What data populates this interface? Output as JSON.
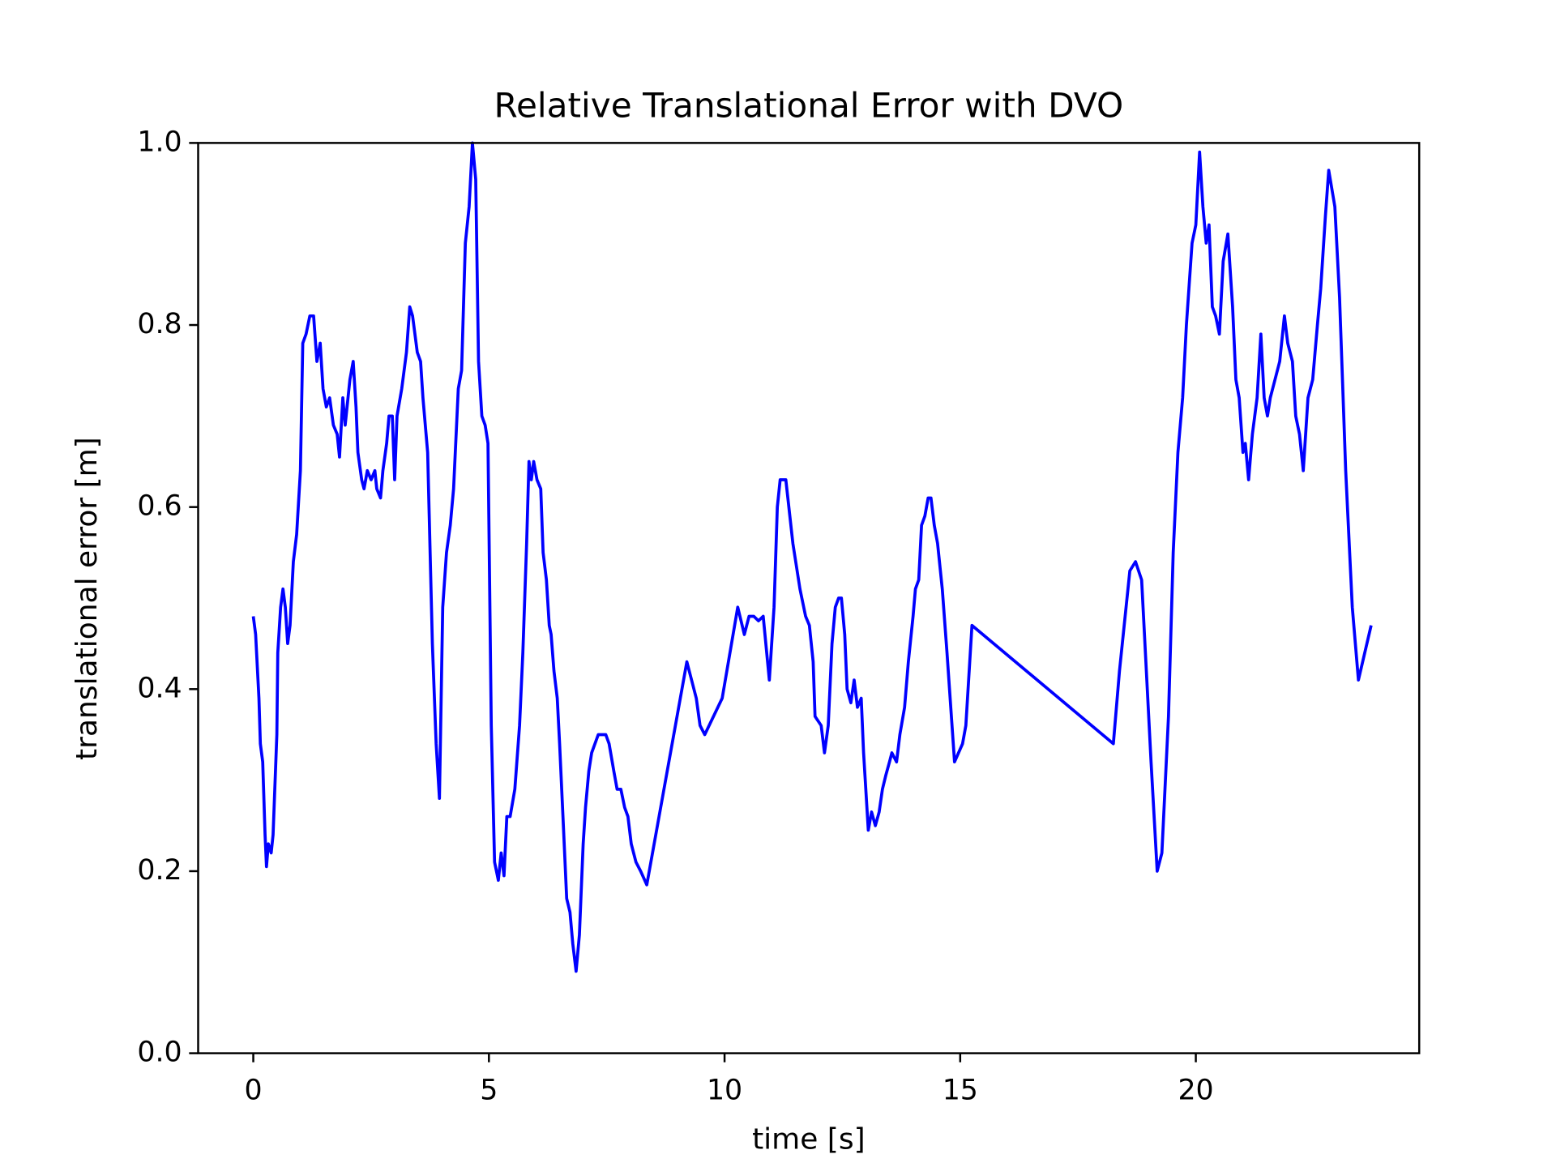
{
  "chart_data": {
    "type": "line",
    "title": "Relative Translational Error with DVO",
    "x_label": "time [s]",
    "y_label": "translational error [m]",
    "xlim": [
      -1.17,
      24.74
    ],
    "ylim": [
      0,
      1
    ],
    "xticks": [
      0,
      5,
      10,
      15,
      20
    ],
    "yticks": [
      {
        "value": 0,
        "label": "0.0"
      },
      {
        "value": 0.2,
        "label": "0.2"
      },
      {
        "value": 0.4,
        "label": "0.4"
      },
      {
        "value": 0.6,
        "label": "0.6"
      },
      {
        "value": 0.8,
        "label": "0.8"
      },
      {
        "value": 1,
        "label": "1.0"
      }
    ],
    "grid": false,
    "series": [
      {
        "color": "#0000ff",
        "x": [
          0,
          0.05,
          0.12,
          0.15,
          0.2,
          0.25,
          0.28,
          0.32,
          0.38,
          0.42,
          0.5,
          0.52,
          0.58,
          0.63,
          0.68,
          0.73,
          0.78,
          0.85,
          0.92,
          1.0,
          1.05,
          1.12,
          1.2,
          1.28,
          1.35,
          1.42,
          1.48,
          1.55,
          1.62,
          1.7,
          1.78,
          1.83,
          1.9,
          1.95,
          2.05,
          2.12,
          2.18,
          2.22,
          2.3,
          2.35,
          2.42,
          2.5,
          2.58,
          2.62,
          2.7,
          2.75,
          2.83,
          2.88,
          2.95,
          3.0,
          3.05,
          3.15,
          3.25,
          3.32,
          3.38,
          3.48,
          3.55,
          3.6,
          3.7,
          3.8,
          3.88,
          3.95,
          4.02,
          4.1,
          4.18,
          4.25,
          4.35,
          4.42,
          4.5,
          4.58,
          4.65,
          4.72,
          4.78,
          4.85,
          4.92,
          4.98,
          5.05,
          5.12,
          5.2,
          5.26,
          5.32,
          5.38,
          5.45,
          5.55,
          5.65,
          5.72,
          5.8,
          5.85,
          5.9,
          5.95,
          6.02,
          6.1,
          6.15,
          6.22,
          6.28,
          6.32,
          6.38,
          6.45,
          6.5,
          6.58,
          6.65,
          6.72,
          6.78,
          6.85,
          6.92,
          7.0,
          7.05,
          7.12,
          7.18,
          7.25,
          7.32,
          7.4,
          7.48,
          7.55,
          7.65,
          7.72,
          7.8,
          7.88,
          7.95,
          8.02,
          8.12,
          8.22,
          8.35,
          9.2,
          9.3,
          9.4,
          9.48,
          9.58,
          9.95,
          10.28,
          10.42,
          10.52,
          10.62,
          10.72,
          10.82,
          10.95,
          11.05,
          11.12,
          11.18,
          11.3,
          11.45,
          11.6,
          11.72,
          11.8,
          11.88,
          11.92,
          12.05,
          12.12,
          12.2,
          12.28,
          12.35,
          12.42,
          12.48,
          12.55,
          12.6,
          12.68,
          12.75,
          12.82,
          12.9,
          12.95,
          13.05,
          13.12,
          13.2,
          13.28,
          13.35,
          13.42,
          13.5,
          13.55,
          13.65,
          13.72,
          13.82,
          13.9,
          14.0,
          14.05,
          14.12,
          14.18,
          14.25,
          14.32,
          14.38,
          14.45,
          14.52,
          14.62,
          14.72,
          14.88,
          15.05,
          15.12,
          15.25,
          18.25,
          18.38,
          18.6,
          18.72,
          18.85,
          19.05,
          19.18,
          19.28,
          19.42,
          19.52,
          19.62,
          19.72,
          19.8,
          19.92,
          20.0,
          20.08,
          20.15,
          20.22,
          20.28,
          20.35,
          20.42,
          20.5,
          20.58,
          20.68,
          20.78,
          20.85,
          20.92,
          21.0,
          21.05,
          21.12,
          21.2,
          21.3,
          21.38,
          21.45,
          21.52,
          21.58,
          21.68,
          21.78,
          21.88,
          21.95,
          22.05,
          22.12,
          22.2,
          22.28,
          22.38,
          22.48,
          22.58,
          22.65,
          22.75,
          22.82,
          22.95,
          23.05,
          23.18,
          23.32,
          23.45,
          23.72
        ],
        "values": [
          0.48,
          0.46,
          0.39,
          0.34,
          0.32,
          0.24,
          0.205,
          0.23,
          0.22,
          0.24,
          0.35,
          0.44,
          0.49,
          0.51,
          0.49,
          0.45,
          0.47,
          0.54,
          0.57,
          0.64,
          0.78,
          0.79,
          0.81,
          0.81,
          0.76,
          0.78,
          0.73,
          0.71,
          0.72,
          0.69,
          0.68,
          0.655,
          0.72,
          0.69,
          0.74,
          0.76,
          0.71,
          0.66,
          0.63,
          0.62,
          0.64,
          0.63,
          0.64,
          0.62,
          0.61,
          0.64,
          0.67,
          0.7,
          0.7,
          0.63,
          0.7,
          0.73,
          0.77,
          0.82,
          0.81,
          0.77,
          0.76,
          0.72,
          0.66,
          0.45,
          0.34,
          0.28,
          0.49,
          0.55,
          0.58,
          0.62,
          0.73,
          0.75,
          0.89,
          0.93,
          1.0,
          0.96,
          0.76,
          0.7,
          0.69,
          0.67,
          0.36,
          0.21,
          0.19,
          0.22,
          0.195,
          0.26,
          0.26,
          0.29,
          0.36,
          0.44,
          0.56,
          0.65,
          0.63,
          0.65,
          0.63,
          0.62,
          0.55,
          0.52,
          0.47,
          0.46,
          0.42,
          0.39,
          0.34,
          0.25,
          0.17,
          0.155,
          0.12,
          0.09,
          0.13,
          0.23,
          0.27,
          0.31,
          0.33,
          0.34,
          0.35,
          0.35,
          0.35,
          0.34,
          0.31,
          0.29,
          0.29,
          0.27,
          0.26,
          0.23,
          0.21,
          0.2,
          0.185,
          0.43,
          0.41,
          0.39,
          0.36,
          0.35,
          0.39,
          0.49,
          0.46,
          0.48,
          0.48,
          0.475,
          0.48,
          0.41,
          0.49,
          0.6,
          0.63,
          0.63,
          0.56,
          0.51,
          0.48,
          0.47,
          0.43,
          0.37,
          0.36,
          0.33,
          0.36,
          0.45,
          0.49,
          0.5,
          0.5,
          0.46,
          0.4,
          0.385,
          0.41,
          0.38,
          0.39,
          0.33,
          0.245,
          0.265,
          0.25,
          0.265,
          0.29,
          0.305,
          0.32,
          0.33,
          0.32,
          0.35,
          0.38,
          0.43,
          0.48,
          0.51,
          0.52,
          0.58,
          0.59,
          0.61,
          0.61,
          0.58,
          0.56,
          0.51,
          0.44,
          0.32,
          0.34,
          0.36,
          0.47,
          0.34,
          0.42,
          0.53,
          0.54,
          0.52,
          0.32,
          0.2,
          0.22,
          0.37,
          0.55,
          0.66,
          0.72,
          0.8,
          0.89,
          0.91,
          0.99,
          0.93,
          0.89,
          0.91,
          0.82,
          0.81,
          0.79,
          0.87,
          0.9,
          0.82,
          0.74,
          0.72,
          0.66,
          0.67,
          0.63,
          0.68,
          0.72,
          0.79,
          0.72,
          0.7,
          0.72,
          0.74,
          0.76,
          0.81,
          0.78,
          0.76,
          0.7,
          0.68,
          0.64,
          0.72,
          0.74,
          0.8,
          0.84,
          0.92,
          0.97,
          0.93,
          0.83,
          0.64,
          0.49,
          0.41,
          0.47
        ]
      }
    ]
  }
}
